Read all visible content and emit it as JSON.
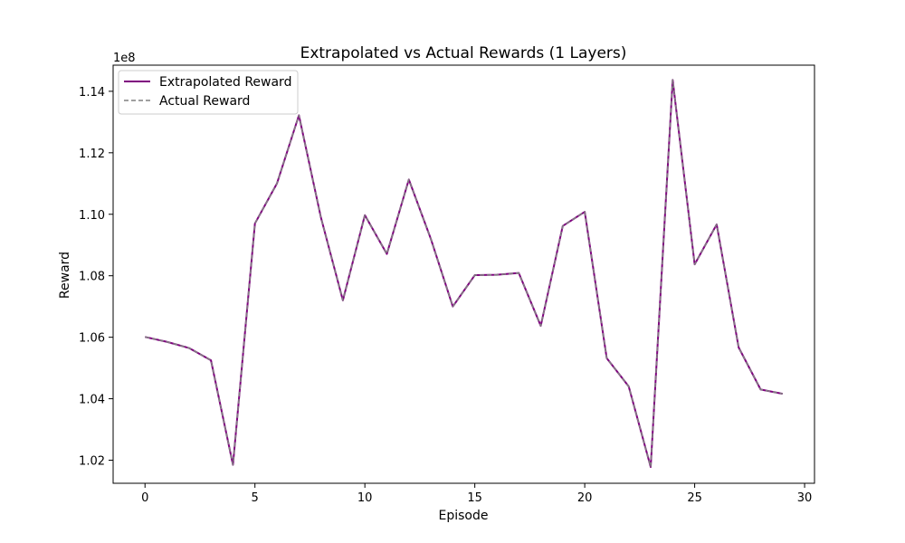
{
  "chart_data": {
    "type": "line",
    "title": "Extrapolated vs Actual Rewards (1 Layers)",
    "xlabel": "Episode",
    "ylabel": "Reward",
    "y_multiplier_label": "1e8",
    "y_multiplier": 100000000,
    "xlim": [
      -1.45,
      30.45
    ],
    "ylim": [
      1.0125,
      1.1485
    ],
    "x_ticks": [
      0,
      5,
      10,
      15,
      20,
      25,
      30
    ],
    "y_ticks": [
      1.02,
      1.04,
      1.06,
      1.08,
      1.1,
      1.12,
      1.14
    ],
    "y_tick_labels": [
      "1.02",
      "1.04",
      "1.06",
      "1.08",
      "1.10",
      "1.12",
      "1.14"
    ],
    "legend_position": "upper-left",
    "grid": false,
    "x": [
      0,
      1,
      2,
      3,
      4,
      5,
      6,
      7,
      8,
      9,
      10,
      11,
      12,
      13,
      14,
      15,
      16,
      17,
      18,
      19,
      20,
      21,
      22,
      23,
      24,
      25,
      26,
      27,
      28,
      29
    ],
    "series": [
      {
        "name": "Extrapolated Reward",
        "color": "#800080",
        "style": "solid",
        "values": [
          1.0601,
          1.0585,
          1.0565,
          1.0525,
          1.0185,
          1.097,
          1.11,
          1.1322,
          1.099,
          1.072,
          1.0997,
          1.0871,
          1.1113,
          1.092,
          1.07,
          1.0802,
          1.0803,
          1.0809,
          1.0637,
          1.0962,
          1.1008,
          1.0532,
          1.044,
          1.0178,
          1.1437,
          1.0837,
          1.0967,
          1.0567,
          1.043,
          1.0416
        ]
      },
      {
        "name": "Actual Reward",
        "color": "#808080",
        "style": "dashed",
        "values": [
          1.0601,
          1.0585,
          1.0565,
          1.0525,
          1.0185,
          1.097,
          1.11,
          1.1322,
          1.099,
          1.072,
          1.0997,
          1.0871,
          1.1113,
          1.092,
          1.07,
          1.0802,
          1.0803,
          1.0809,
          1.0637,
          1.0962,
          1.1008,
          1.0532,
          1.044,
          1.0178,
          1.1437,
          1.0837,
          1.0967,
          1.0567,
          1.043,
          1.0416
        ]
      }
    ]
  }
}
